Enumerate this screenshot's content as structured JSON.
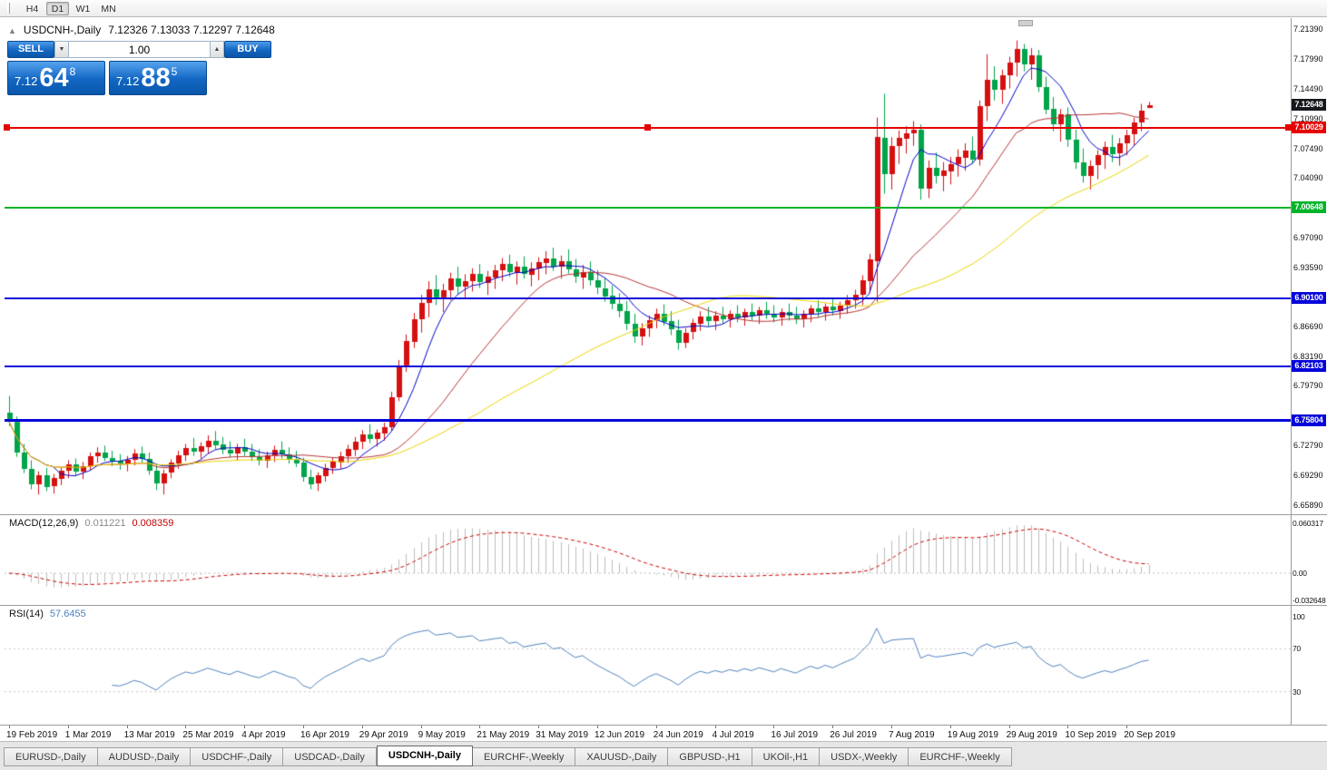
{
  "toolbar": {
    "timeframes": [
      "H4",
      "D1",
      "W1",
      "MN"
    ],
    "active_timeframe": "D1"
  },
  "icons": {
    "oct_collapse": "▲",
    "volume_down": "▼",
    "volume_up": "▲"
  },
  "chart_header": {
    "symbol": "USDCNH-,Daily",
    "ohlc": "7.12326 7.13033 7.12297 7.12648"
  },
  "trade_panel": {
    "sell_label": "SELL",
    "buy_label": "BUY",
    "volume": "1.00",
    "sell_price": {
      "big_figure": "7.12",
      "pips": "64",
      "point": "8"
    },
    "buy_price": {
      "big_figure": "7.12",
      "pips": "88",
      "point": "5"
    }
  },
  "indicator_labels": {
    "macd": {
      "name": "MACD(12,26,9)",
      "main_value": "0.011221",
      "signal_value": "0.008359"
    },
    "rsi": {
      "name": "RSI(14)",
      "value": "57.6455"
    }
  },
  "tabs": [
    "EURUSD-,Daily",
    "AUDUSD-,Daily",
    "USDCHF-,Daily",
    "USDCAD-,Daily",
    "USDCNH-,Daily",
    "EURCHF-,Weekly",
    "XAUUSD-,Daily",
    "GBPUSD-,H1",
    "UKOil-,H1",
    "USDX-,Weekly",
    "EURCHF-,Weekly"
  ],
  "active_tab_index": 4,
  "chart_data": {
    "type": "candlestick",
    "symbol": "USDCNH-",
    "timeframe": "Daily",
    "colors": {
      "bull": "#d51010",
      "bear": "#00a44a",
      "ma_fast": "#0202c8",
      "ma_mid": "#b73333",
      "ma_slow": "#e8d400",
      "macd_hist": "#bdbdbd",
      "macd_signal": "#cc0000",
      "rsi": "#4f81bd"
    },
    "price_axis": {
      "max": 7.226,
      "min": 6.65,
      "ticks": [
        {
          "label": "7.21390",
          "value": 7.2139
        },
        {
          "label": "7.17990",
          "value": 7.1799
        },
        {
          "label": "7.14490",
          "value": 7.1449
        },
        {
          "label": "7.10990",
          "value": 7.1099
        },
        {
          "label": "7.07490",
          "value": 7.0749
        },
        {
          "label": "7.04090",
          "value": 7.0409
        },
        {
          "label": "6.97090",
          "value": 6.9709
        },
        {
          "label": "6.93590",
          "value": 6.9359
        },
        {
          "label": "6.86690",
          "value": 6.8669
        },
        {
          "label": "6.83190",
          "value": 6.8319
        },
        {
          "label": "6.79790",
          "value": 6.7979
        },
        {
          "label": "6.72790",
          "value": 6.7279
        },
        {
          "label": "6.69290",
          "value": 6.6929
        },
        {
          "label": "6.65890",
          "value": 6.6589
        }
      ]
    },
    "x_axis_labels": [
      "19 Feb 2019",
      "1 Mar 2019",
      "13 Mar 2019",
      "25 Mar 2019",
      "4 Apr 2019",
      "16 Apr 2019",
      "29 Apr 2019",
      "9 May 2019",
      "21 May 2019",
      "31 May 2019",
      "12 Jun 2019",
      "24 Jun 2019",
      "4 Jul 2019",
      "16 Jul 2019",
      "26 Jul 2019",
      "7 Aug 2019",
      "19 Aug 2019",
      "29 Aug 2019",
      "10 Sep 2019",
      "20 Sep 2019"
    ],
    "bars_per_label": 8,
    "moving_averages": [
      {
        "period": 7,
        "color": "#0202c8"
      },
      {
        "period": 20,
        "color": "#b73333"
      },
      {
        "period": 45,
        "color": "#e8d400"
      }
    ],
    "horizontal_lines": [
      {
        "price": 7.10029,
        "color": "#e60000",
        "badge": "7.10029",
        "width": 2,
        "selected": true
      },
      {
        "price": 7.00648,
        "color": "#00b42a",
        "badge": "7.00648",
        "width": 2,
        "selected": false
      },
      {
        "price": 6.901,
        "color": "#0505d9",
        "badge": "6.90100",
        "width": 2,
        "selected": false
      },
      {
        "price": 6.82103,
        "color": "#0505d9",
        "badge": "6.82103",
        "width": 2,
        "selected": false
      },
      {
        "price": 6.75804,
        "color": "#0505d9",
        "badge": "6.75804",
        "width": 3,
        "selected": false
      }
    ],
    "last_price_badge": {
      "label": "7.12648",
      "value": 7.12648,
      "color": "#15181c"
    },
    "macd_panel": {
      "axis_ticks": [
        {
          "label": "0.060317",
          "value": 0.060317
        },
        {
          "label": "0.00",
          "value": 0
        },
        {
          "label": "-0.032648",
          "value": -0.032648
        }
      ]
    },
    "rsi_panel": {
      "axis_ticks": [
        {
          "label": "100",
          "value": 100
        },
        {
          "label": "70",
          "value": 70
        },
        {
          "label": "30",
          "value": 30
        }
      ],
      "levels": [
        70,
        30
      ]
    },
    "candles": [
      [
        6.768,
        6.787,
        6.752,
        6.757
      ],
      [
        6.757,
        6.763,
        6.716,
        6.721
      ],
      [
        6.721,
        6.731,
        6.697,
        6.702
      ],
      [
        6.702,
        6.712,
        6.678,
        6.684
      ],
      [
        6.684,
        6.699,
        6.672,
        6.695
      ],
      [
        6.695,
        6.703,
        6.676,
        6.681
      ],
      [
        6.681,
        6.696,
        6.673,
        6.691
      ],
      [
        6.691,
        6.704,
        6.683,
        6.7
      ],
      [
        6.7,
        6.712,
        6.691,
        6.707
      ],
      [
        6.707,
        6.714,
        6.694,
        6.699
      ],
      [
        6.699,
        6.71,
        6.69,
        6.705
      ],
      [
        6.705,
        6.721,
        6.7,
        6.717
      ],
      [
        6.717,
        6.727,
        6.709,
        6.721
      ],
      [
        6.721,
        6.729,
        6.711,
        6.715
      ],
      [
        6.715,
        6.723,
        6.705,
        6.711
      ],
      [
        6.711,
        6.719,
        6.701,
        6.708
      ],
      [
        6.708,
        6.717,
        6.699,
        6.713
      ],
      [
        6.713,
        6.725,
        6.706,
        6.72
      ],
      [
        6.72,
        6.728,
        6.709,
        6.714
      ],
      [
        6.714,
        6.721,
        6.695,
        6.7
      ],
      [
        6.7,
        6.707,
        6.677,
        6.685
      ],
      [
        6.685,
        6.701,
        6.672,
        6.697
      ],
      [
        6.697,
        6.713,
        6.691,
        6.709
      ],
      [
        6.709,
        6.723,
        6.702,
        6.718
      ],
      [
        6.718,
        6.731,
        6.711,
        6.726
      ],
      [
        6.726,
        6.738,
        6.717,
        6.722
      ],
      [
        6.722,
        6.733,
        6.714,
        6.728
      ],
      [
        6.728,
        6.741,
        6.72,
        6.735
      ],
      [
        6.735,
        6.746,
        6.725,
        6.73
      ],
      [
        6.73,
        6.739,
        6.719,
        6.724
      ],
      [
        6.724,
        6.734,
        6.715,
        6.72
      ],
      [
        6.72,
        6.731,
        6.712,
        6.727
      ],
      [
        6.727,
        6.737,
        6.717,
        6.722
      ],
      [
        6.722,
        6.731,
        6.711,
        6.716
      ],
      [
        6.716,
        6.725,
        6.706,
        6.712
      ],
      [
        6.712,
        6.722,
        6.703,
        6.718
      ],
      [
        6.718,
        6.729,
        6.71,
        6.724
      ],
      [
        6.724,
        6.734,
        6.714,
        6.719
      ],
      [
        6.719,
        6.727,
        6.708,
        6.713
      ],
      [
        6.713,
        6.723,
        6.704,
        6.709
      ],
      [
        6.709,
        6.715,
        6.687,
        6.692
      ],
      [
        6.692,
        6.701,
        6.678,
        6.684
      ],
      [
        6.684,
        6.698,
        6.676,
        6.694
      ],
      [
        6.694,
        6.708,
        6.687,
        6.703
      ],
      [
        6.703,
        6.715,
        6.696,
        6.71
      ],
      [
        6.71,
        6.722,
        6.702,
        6.717
      ],
      [
        6.717,
        6.73,
        6.709,
        6.725
      ],
      [
        6.725,
        6.739,
        6.717,
        6.734
      ],
      [
        6.734,
        6.747,
        6.725,
        6.742
      ],
      [
        6.742,
        6.754,
        6.732,
        6.737
      ],
      [
        6.737,
        6.748,
        6.728,
        6.744
      ],
      [
        6.744,
        6.756,
        6.735,
        6.751
      ],
      [
        6.751,
        6.792,
        6.746,
        6.786
      ],
      [
        6.786,
        6.829,
        6.781,
        6.822
      ],
      [
        6.822,
        6.859,
        6.815,
        6.851
      ],
      [
        6.851,
        6.884,
        6.843,
        6.877
      ],
      [
        6.877,
        6.905,
        6.861,
        6.896
      ],
      [
        6.896,
        6.921,
        6.879,
        6.912
      ],
      [
        6.912,
        6.928,
        6.893,
        6.902
      ],
      [
        6.902,
        6.918,
        6.885,
        6.91
      ],
      [
        6.91,
        6.931,
        6.899,
        6.924
      ],
      [
        6.924,
        6.938,
        6.906,
        6.915
      ],
      [
        6.915,
        6.929,
        6.901,
        6.921
      ],
      [
        6.921,
        6.936,
        6.909,
        6.929
      ],
      [
        6.929,
        6.941,
        6.913,
        6.919
      ],
      [
        6.919,
        6.933,
        6.905,
        6.926
      ],
      [
        6.926,
        6.94,
        6.912,
        6.934
      ],
      [
        6.934,
        6.948,
        6.921,
        6.941
      ],
      [
        6.941,
        6.952,
        6.926,
        6.931
      ],
      [
        6.931,
        6.944,
        6.917,
        6.938
      ],
      [
        6.938,
        6.95,
        6.924,
        6.929
      ],
      [
        6.929,
        6.943,
        6.915,
        6.936
      ],
      [
        6.936,
        6.949,
        6.922,
        6.943
      ],
      [
        6.943,
        6.956,
        6.929,
        6.948
      ],
      [
        6.948,
        6.96,
        6.933,
        6.938
      ],
      [
        6.938,
        6.951,
        6.924,
        6.944
      ],
      [
        6.944,
        6.958,
        6.93,
        6.935
      ],
      [
        6.935,
        6.947,
        6.919,
        6.926
      ],
      [
        6.926,
        6.94,
        6.912,
        6.932
      ],
      [
        6.932,
        6.944,
        6.916,
        6.922
      ],
      [
        6.922,
        6.934,
        6.906,
        6.913
      ],
      [
        6.913,
        6.925,
        6.897,
        6.904
      ],
      [
        6.904,
        6.916,
        6.888,
        6.895
      ],
      [
        6.895,
        6.907,
        6.879,
        6.886
      ],
      [
        6.886,
        6.898,
        6.864,
        6.871
      ],
      [
        6.871,
        6.883,
        6.849,
        6.856
      ],
      [
        6.856,
        6.872,
        6.846,
        6.866
      ],
      [
        6.866,
        6.881,
        6.856,
        6.876
      ],
      [
        6.876,
        6.889,
        6.866,
        6.883
      ],
      [
        6.883,
        6.894,
        6.869,
        6.874
      ],
      [
        6.874,
        6.886,
        6.858,
        6.864
      ],
      [
        6.864,
        6.876,
        6.841,
        6.849
      ],
      [
        6.849,
        6.866,
        6.843,
        6.861
      ],
      [
        6.861,
        6.877,
        6.853,
        6.872
      ],
      [
        6.872,
        6.886,
        6.863,
        6.88
      ],
      [
        6.88,
        6.891,
        6.868,
        6.875
      ],
      [
        6.875,
        6.886,
        6.864,
        6.881
      ],
      [
        6.881,
        6.891,
        6.871,
        6.877
      ],
      [
        6.877,
        6.887,
        6.867,
        6.883
      ],
      [
        6.883,
        6.893,
        6.873,
        6.879
      ],
      [
        6.879,
        6.889,
        6.869,
        6.885
      ],
      [
        6.885,
        6.895,
        6.875,
        6.881
      ],
      [
        6.881,
        6.891,
        6.871,
        6.887
      ],
      [
        6.887,
        6.897,
        6.877,
        6.883
      ],
      [
        6.883,
        6.893,
        6.873,
        6.879
      ],
      [
        6.879,
        6.889,
        6.869,
        6.885
      ],
      [
        6.885,
        6.895,
        6.875,
        6.881
      ],
      [
        6.881,
        6.891,
        6.871,
        6.877
      ],
      [
        6.877,
        6.887,
        6.867,
        6.883
      ],
      [
        6.883,
        6.893,
        6.873,
        6.889
      ],
      [
        6.889,
        6.899,
        6.879,
        6.885
      ],
      [
        6.885,
        6.895,
        6.875,
        6.891
      ],
      [
        6.891,
        6.901,
        6.881,
        6.887
      ],
      [
        6.887,
        6.897,
        6.877,
        6.893
      ],
      [
        6.893,
        6.905,
        6.883,
        6.899
      ],
      [
        6.899,
        6.911,
        6.889,
        6.905
      ],
      [
        6.905,
        6.928,
        6.893,
        6.922
      ],
      [
        6.922,
        6.953,
        6.908,
        6.947
      ],
      [
        6.944,
        7.112,
        6.897,
        7.089
      ],
      [
        7.088,
        7.14,
        7.023,
        7.046
      ],
      [
        7.046,
        7.089,
        7.028,
        7.079
      ],
      [
        7.079,
        7.097,
        7.058,
        7.088
      ],
      [
        7.088,
        7.102,
        7.07,
        7.094
      ],
      [
        7.094,
        7.108,
        7.079,
        7.098
      ],
      [
        7.098,
        7.104,
        7.016,
        7.029
      ],
      [
        7.029,
        7.062,
        7.018,
        7.053
      ],
      [
        7.053,
        7.071,
        7.035,
        7.044
      ],
      [
        7.044,
        7.06,
        7.026,
        7.05
      ],
      [
        7.05,
        7.066,
        7.034,
        7.058
      ],
      [
        7.058,
        7.075,
        7.043,
        7.066
      ],
      [
        7.066,
        7.082,
        7.05,
        7.074
      ],
      [
        7.074,
        7.09,
        7.058,
        7.063
      ],
      [
        7.063,
        7.132,
        7.056,
        7.125
      ],
      [
        7.125,
        7.186,
        7.108,
        7.156
      ],
      [
        7.156,
        7.172,
        7.132,
        7.144
      ],
      [
        7.144,
        7.168,
        7.128,
        7.161
      ],
      [
        7.161,
        7.183,
        7.146,
        7.176
      ],
      [
        7.176,
        7.202,
        7.16,
        7.192
      ],
      [
        7.192,
        7.198,
        7.166,
        7.174
      ],
      [
        7.174,
        7.193,
        7.156,
        7.185
      ],
      [
        7.185,
        7.191,
        7.142,
        7.148
      ],
      [
        7.148,
        7.16,
        7.116,
        7.122
      ],
      [
        7.122,
        7.136,
        7.096,
        7.104
      ],
      [
        7.104,
        7.122,
        7.084,
        7.116
      ],
      [
        7.116,
        7.124,
        7.078,
        7.086
      ],
      [
        7.086,
        7.098,
        7.052,
        7.06
      ],
      [
        7.06,
        7.076,
        7.036,
        7.044
      ],
      [
        7.044,
        7.062,
        7.028,
        7.056
      ],
      [
        7.056,
        7.074,
        7.04,
        7.068
      ],
      [
        7.068,
        7.084,
        7.052,
        7.078
      ],
      [
        7.078,
        7.092,
        7.06,
        7.07
      ],
      [
        7.07,
        7.088,
        7.056,
        7.082
      ],
      [
        7.082,
        7.098,
        7.068,
        7.092
      ],
      [
        7.092,
        7.112,
        7.08,
        7.106
      ],
      [
        7.106,
        7.128,
        7.096,
        7.12
      ],
      [
        7.12326,
        7.13033,
        7.12297,
        7.12648
      ]
    ]
  }
}
